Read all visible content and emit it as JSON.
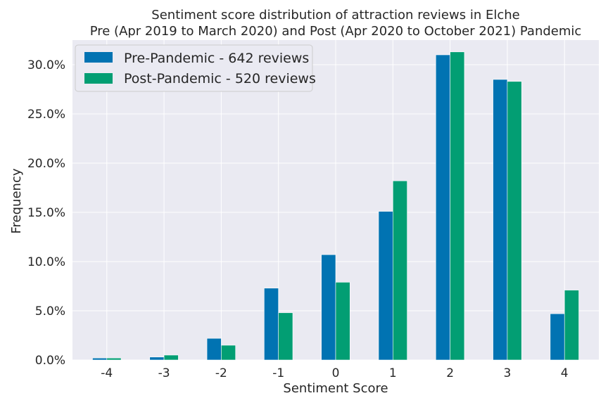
{
  "chart_data": {
    "type": "bar",
    "title": "Sentiment score distribution of attraction reviews in Elche",
    "subtitle": "Pre (Apr 2019 to March 2020) and Post (Apr 2020 to October 2021) Pandemic",
    "xlabel": "Sentiment Score",
    "ylabel": "Frequency",
    "categories": [
      "-4",
      "-3",
      "-2",
      "-1",
      "0",
      "1",
      "2",
      "3",
      "4"
    ],
    "series": [
      {
        "name": "Pre-Pandemic - 642 reviews",
        "color": "#0173b2",
        "values": [
          0.2,
          0.3,
          2.2,
          7.3,
          10.7,
          15.1,
          31.0,
          28.5,
          4.7
        ]
      },
      {
        "name": "Post-Pandemic - 520 reviews",
        "color": "#029e73",
        "values": [
          0.2,
          0.5,
          1.5,
          4.8,
          7.9,
          18.2,
          31.3,
          28.3,
          7.1
        ]
      }
    ],
    "ylim": [
      0,
      32.5
    ],
    "yticks": [
      "0.0%",
      "5.0%",
      "10.0%",
      "15.0%",
      "20.0%",
      "25.0%",
      "30.0%"
    ],
    "ytick_values": [
      0,
      5,
      10,
      15,
      20,
      25,
      30
    ],
    "grid": true,
    "legend_position": "top-left",
    "background_color": "#eaeaf2",
    "grid_color": "#ffffff"
  }
}
